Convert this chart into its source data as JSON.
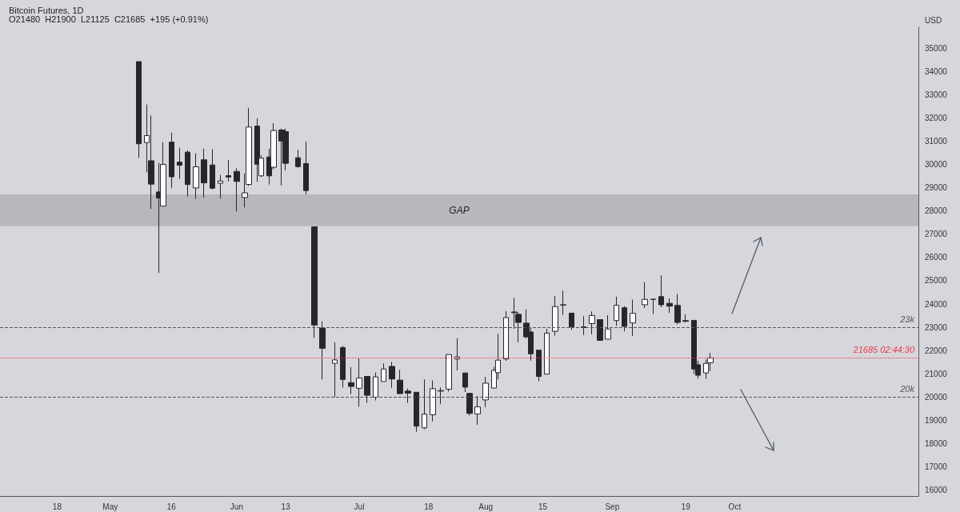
{
  "chart_data": {
    "type": "candlestick",
    "title": "Bitcoin Futures, 1D",
    "subtitle": "O21480  H21900  L21125  C21685  +195 (+0.91%)",
    "ylabel": "USD",
    "x": [
      "--05-08",
      "--05-10",
      "--05-11",
      "--05-13",
      "--05-14",
      "--05-16",
      "--05-18",
      "--05-20",
      "--05-22",
      "--05-24",
      "--05-26",
      "--05-28",
      "--05-30",
      "--06-01",
      "--06-03",
      "--06-04",
      "--06-06",
      "--06-07",
      "--06-09",
      "--06-10",
      "--06-12",
      "--06-13",
      "--06-16",
      "--06-18",
      "--06-20",
      "--06-22",
      "--06-25",
      "--06-27",
      "--06-29",
      "--07-01",
      "--07-03",
      "--07-05",
      "--07-07",
      "--07-09",
      "--07-11",
      "--07-13",
      "--07-15",
      "--07-17",
      "--07-19",
      "--07-21",
      "--07-23",
      "--07-25",
      "--07-27",
      "--07-28",
      "--07-30",
      "--08-01",
      "--08-03",
      "--08-04",
      "--08-06",
      "--08-08",
      "--08-09",
      "--08-11",
      "--08-12",
      "--08-14",
      "--08-16",
      "--08-18",
      "--08-20",
      "--08-22",
      "--08-25",
      "--08-27",
      "--08-29",
      "--08-31",
      "--09-02",
      "--09-04",
      "--09-06",
      "--09-09",
      "--09-11",
      "--09-13",
      "--09-15",
      "--09-17",
      "--09-19",
      "--09-21",
      "--09-22",
      "--09-24",
      "--09-25"
    ],
    "ohlc": [
      [
        34420,
        34420,
        30290,
        30890
      ],
      [
        30940,
        32580,
        29660,
        31240
      ],
      [
        30160,
        32100,
        28090,
        29155
      ],
      [
        28820,
        30070,
        25340,
        28560
      ],
      [
        28210,
        30960,
        28210,
        30000
      ],
      [
        30960,
        31370,
        28990,
        29470
      ],
      [
        30100,
        30720,
        29380,
        29970
      ],
      [
        30530,
        30610,
        28620,
        29140
      ],
      [
        28990,
        30480,
        28520,
        29900
      ],
      [
        30200,
        30680,
        28580,
        29210
      ],
      [
        29980,
        30660,
        28930,
        28980
      ],
      [
        29190,
        29550,
        28540,
        29290
      ],
      [
        29520,
        30200,
        29270,
        29460
      ],
      [
        29700,
        29840,
        27980,
        29270
      ],
      [
        28580,
        29620,
        28150,
        28780
      ],
      [
        29140,
        32430,
        29080,
        31610
      ],
      [
        31650,
        31980,
        29250,
        30010
      ],
      [
        29510,
        30400,
        29470,
        30270
      ],
      [
        30320,
        30680,
        29140,
        29510
      ],
      [
        29880,
        31780,
        29790,
        31460
      ],
      [
        31480,
        31540,
        29100,
        31010
      ],
      [
        31410,
        31540,
        29750,
        30050
      ],
      [
        30290,
        30630,
        29860,
        29910
      ],
      [
        30040,
        30980,
        28720,
        28880
      ],
      [
        27320,
        27320,
        22550,
        23100
      ],
      [
        22970,
        23260,
        20760,
        22100
      ],
      [
        21450,
        22350,
        20010,
        21600
      ],
      [
        22130,
        22200,
        20410,
        20760
      ],
      [
        20620,
        21290,
        20130,
        20460
      ],
      [
        20380,
        21670,
        19590,
        20820
      ],
      [
        20890,
        20890,
        19750,
        20080
      ],
      [
        20000,
        21060,
        19860,
        20870
      ],
      [
        20670,
        21450,
        20670,
        21210
      ],
      [
        21320,
        21510,
        20400,
        20780
      ],
      [
        20730,
        21170,
        20130,
        20150
      ],
      [
        20260,
        20370,
        19750,
        20170
      ],
      [
        20210,
        20210,
        18510,
        18750
      ],
      [
        18680,
        20760,
        18620,
        19270
      ],
      [
        19240,
        20720,
        18960,
        20360
      ],
      [
        20280,
        20410,
        19700,
        20260
      ],
      [
        20340,
        21830,
        20240,
        21830
      ],
      [
        21640,
        22530,
        21150,
        21730
      ],
      [
        21040,
        21040,
        20220,
        20430
      ],
      [
        20160,
        20160,
        19210,
        19300
      ],
      [
        19280,
        20040,
        18810,
        19580
      ],
      [
        19880,
        20870,
        19570,
        20600
      ],
      [
        20390,
        21300,
        20360,
        21150
      ],
      [
        21050,
        22720,
        20760,
        21590
      ],
      [
        21640,
        23700,
        21560,
        23420
      ],
      [
        23660,
        24260,
        22940,
        23630
      ],
      [
        23560,
        23640,
        22350,
        23210
      ],
      [
        23180,
        23770,
        22530,
        22590
      ],
      [
        22800,
        22980,
        21570,
        21860
      ],
      [
        22020,
        22020,
        20690,
        20890
      ],
      [
        20990,
        22930,
        20990,
        22750
      ],
      [
        22830,
        24350,
        22640,
        23890
      ],
      [
        23970,
        24580,
        23530,
        23960
      ],
      [
        23610,
        23610,
        22890,
        23010
      ],
      [
        23020,
        23480,
        22670,
        22990
      ],
      [
        23160,
        23680,
        22700,
        23510
      ],
      [
        23330,
        23330,
        22420,
        22440
      ],
      [
        22490,
        23520,
        22490,
        22930
      ],
      [
        23290,
        24320,
        23070,
        23950
      ],
      [
        23840,
        23910,
        22830,
        23040
      ],
      [
        23190,
        24190,
        22620,
        23600
      ],
      [
        23970,
        24940,
        23830,
        24200
      ],
      [
        24200,
        24220,
        23570,
        24210
      ],
      [
        24320,
        25230,
        23860,
        23970
      ],
      [
        24030,
        24240,
        23610,
        23910
      ],
      [
        23940,
        24430,
        23130,
        23210
      ],
      [
        23290,
        23560,
        23210,
        23260
      ],
      [
        23300,
        23300,
        21000,
        21210
      ],
      [
        21390,
        21560,
        20800,
        20940
      ],
      [
        21040,
        21620,
        20780,
        21450
      ],
      [
        21480,
        21900,
        21125,
        21685
      ]
    ],
    "xlim": [
      "--04-04",
      "--11-15"
    ],
    "xticks": [
      {
        "value": "--04-18",
        "label": "18"
      },
      {
        "value": "--05-01",
        "label": "May"
      },
      {
        "value": "--05-16",
        "label": "16"
      },
      {
        "value": "--06-01",
        "label": "Jun"
      },
      {
        "value": "--06-13",
        "label": "13"
      },
      {
        "value": "--07-01",
        "label": "Jul"
      },
      {
        "value": "--07-18",
        "label": "18"
      },
      {
        "value": "--08-01",
        "label": "Aug"
      },
      {
        "value": "--08-15",
        "label": "15"
      },
      {
        "value": "--09-01",
        "label": "Sep"
      },
      {
        "value": "--09-19",
        "label": "19"
      },
      {
        "value": "--10-01",
        "label": "Oct"
      }
    ],
    "ylim": [
      15750,
      35900
    ],
    "yticks": [
      16000,
      17000,
      18000,
      19000,
      20000,
      21000,
      22000,
      23000,
      24000,
      25000,
      26000,
      27000,
      28000,
      29000,
      30000,
      31000,
      32000,
      33000,
      34000,
      35000
    ],
    "grid": false,
    "bands": [
      {
        "axis": "y",
        "from": 27350,
        "to": 28710,
        "label": "GAP",
        "color": "#b4b5ba"
      }
    ],
    "ref_lines": [
      {
        "axis": "y",
        "value": 23000,
        "label": "23k",
        "line_style": "dashed",
        "color": "#555555"
      },
      {
        "axis": "y",
        "value": 20000,
        "label": "20k",
        "line_style": "dashed",
        "color": "#555555"
      },
      {
        "axis": "y",
        "value": 21685,
        "label": "21685 02:44:30",
        "line_style": "dotted",
        "color": "#f23645"
      }
    ]
  }
}
